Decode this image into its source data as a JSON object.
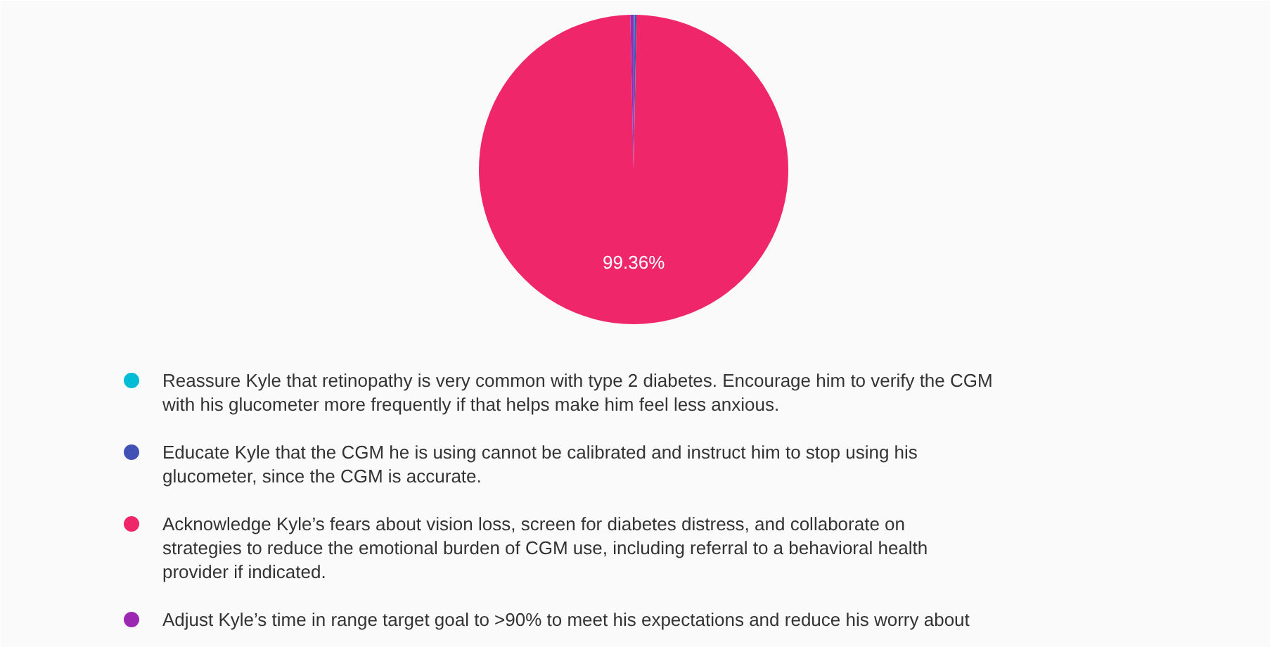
{
  "chart_data": {
    "type": "pie",
    "categories": [
      "Reassure Kyle that retinopathy is very common with type 2 diabetes. Encourage him to verify the CGM with his glucometer more frequently if that helps make him feel less anxious.",
      "Educate Kyle that the CGM he is using cannot be calibrated and instruct him to stop using his glucometer, since the CGM is accurate.",
      "Acknowledge Kyle’s fears about vision loss, screen for diabetes distress, and collaborate on strategies to reduce the emotional burden of CGM use, including referral to a behavioral health provider if indicated.",
      "Adjust Kyle’s time in range target goal to >90% to meet his expectations and reduce his worry about"
    ],
    "values": [
      0.1,
      0.2,
      99.36,
      0.34
    ],
    "colors": [
      "#00bcd4",
      "#3f51b5",
      "#f0266a",
      "#9c27b0"
    ],
    "value_labels": [
      null,
      null,
      "99.36%",
      null
    ],
    "legend": "bottom"
  }
}
